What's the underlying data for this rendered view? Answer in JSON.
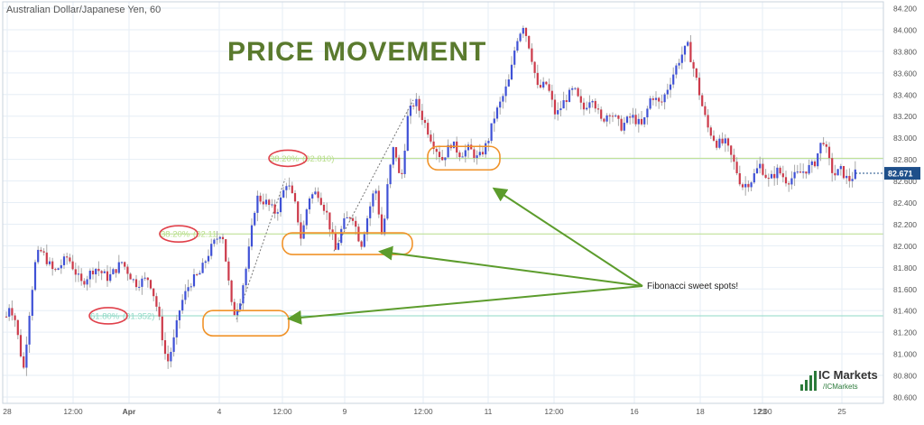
{
  "chart_data": {
    "type": "candlestick",
    "title": "Australian Dollar/Japanese Yen, 60",
    "headline": "PRICE MOVEMENT",
    "x_tick_labels": [
      "28",
      "12:00",
      "Apr",
      "4",
      "12:00",
      "9",
      "12:00",
      "11",
      "12:00",
      "16",
      "18",
      "12:00",
      "23",
      "25"
    ],
    "y_tick_labels": [
      "84.200",
      "84.000",
      "83.800",
      "83.600",
      "83.400",
      "83.200",
      "83.000",
      "82.800",
      "82.600",
      "82.400",
      "82.200",
      "82.000",
      "81.800",
      "81.600",
      "81.400",
      "81.200",
      "81.000",
      "80.800",
      "80.600"
    ],
    "ylim": [
      80.55,
      84.25
    ],
    "grid": true,
    "last_price": "82.671",
    "fib_levels": [
      {
        "label": "38.20%",
        "value_label": "(82.810)",
        "price": 82.81,
        "color": "#b7de8a"
      },
      {
        "label": "38.20%",
        "value_label": "(82.11",
        "price": 82.11,
        "color": "#b7de8a"
      },
      {
        "label": "61.80%",
        "value_label": "(81.352)",
        "price": 81.352,
        "color": "#8fd9c6"
      }
    ],
    "annotation": "Fibonacci sweet spots!",
    "colors": {
      "up": "#3f51d6",
      "down": "#cc3a4a",
      "grid": "#e6eef6",
      "arrow": "#5c9c2c",
      "highlight_box": "#f0932a",
      "fib_circle": "#e0404a",
      "headline": "#5a7a2e"
    },
    "path_points": [
      [
        0,
        81.1
      ],
      [
        10,
        81.45
      ],
      [
        16,
        81.35
      ],
      [
        26,
        80.85
      ],
      [
        34,
        81.5
      ],
      [
        40,
        81.9
      ],
      [
        46,
        81.95
      ],
      [
        60,
        81.75
      ],
      [
        75,
        81.9
      ],
      [
        90,
        81.65
      ],
      [
        105,
        81.8
      ],
      [
        120,
        81.7
      ],
      [
        135,
        81.85
      ],
      [
        150,
        81.65
      ],
      [
        165,
        81.7
      ],
      [
        172,
        81.5
      ],
      [
        178,
        81.25
      ],
      [
        185,
        80.9
      ],
      [
        192,
        81.1
      ],
      [
        200,
        81.45
      ],
      [
        210,
        81.65
      ],
      [
        222,
        81.75
      ],
      [
        232,
        81.95
      ],
      [
        246,
        82.15
      ],
      [
        252,
        81.75
      ],
      [
        258,
        81.35
      ],
      [
        266,
        81.5
      ],
      [
        274,
        81.85
      ],
      [
        284,
        82.45
      ],
      [
        295,
        82.4
      ],
      [
        306,
        82.3
      ],
      [
        318,
        82.6
      ],
      [
        328,
        82.35
      ],
      [
        334,
        82.05
      ],
      [
        342,
        82.45
      ],
      [
        352,
        82.5
      ],
      [
        362,
        82.3
      ],
      [
        372,
        81.95
      ],
      [
        380,
        82.2
      ],
      [
        390,
        82.3
      ],
      [
        400,
        82.0
      ],
      [
        408,
        82.3
      ],
      [
        416,
        82.55
      ],
      [
        424,
        82.05
      ],
      [
        430,
        82.6
      ],
      [
        437,
        82.95
      ],
      [
        444,
        82.55
      ],
      [
        452,
        83.2
      ],
      [
        460,
        83.35
      ],
      [
        470,
        83.15
      ],
      [
        480,
        82.95
      ],
      [
        490,
        82.8
      ],
      [
        500,
        82.95
      ],
      [
        510,
        82.85
      ],
      [
        520,
        82.9
      ],
      [
        530,
        82.8
      ],
      [
        540,
        82.95
      ],
      [
        548,
        83.2
      ],
      [
        556,
        83.35
      ],
      [
        565,
        83.55
      ],
      [
        572,
        83.9
      ],
      [
        580,
        84.05
      ],
      [
        588,
        83.8
      ],
      [
        596,
        83.45
      ],
      [
        606,
        83.5
      ],
      [
        616,
        83.2
      ],
      [
        626,
        83.35
      ],
      [
        636,
        83.45
      ],
      [
        646,
        83.25
      ],
      [
        656,
        83.4
      ],
      [
        666,
        83.15
      ],
      [
        676,
        83.25
      ],
      [
        688,
        83.1
      ],
      [
        700,
        83.2
      ],
      [
        712,
        83.1
      ],
      [
        722,
        83.4
      ],
      [
        732,
        83.3
      ],
      [
        744,
        83.55
      ],
      [
        754,
        83.75
      ],
      [
        762,
        83.85
      ],
      [
        770,
        83.6
      ],
      [
        778,
        83.3
      ],
      [
        784,
        83.1
      ],
      [
        794,
        82.95
      ],
      [
        804,
        82.95
      ],
      [
        814,
        82.75
      ],
      [
        822,
        82.55
      ],
      [
        832,
        82.6
      ],
      [
        842,
        82.75
      ],
      [
        852,
        82.6
      ],
      [
        862,
        82.7
      ],
      [
        872,
        82.6
      ],
      [
        882,
        82.65
      ],
      [
        892,
        82.7
      ],
      [
        902,
        82.75
      ],
      [
        912,
        83.0
      ],
      [
        918,
        82.8
      ],
      [
        924,
        82.65
      ],
      [
        932,
        82.7
      ],
      [
        940,
        82.6
      ],
      [
        948,
        82.67
      ]
    ]
  }
}
